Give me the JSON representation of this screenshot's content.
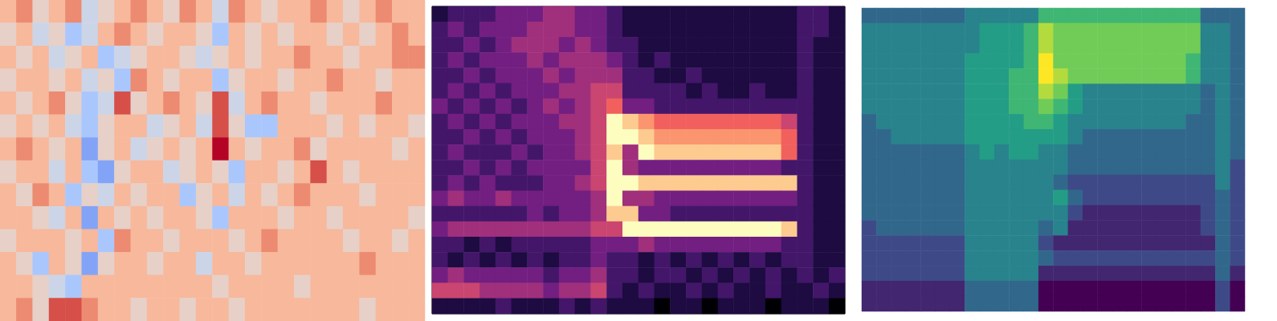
{
  "chart_data": [
    {
      "type": "heatmap",
      "color": "coolwarm",
      "tick_labels": false,
      "zlim": [
        0,
        9
      ],
      "cells": [
        [
          6,
          7,
          5,
          6,
          7,
          4,
          5,
          6,
          7,
          6,
          5,
          7,
          6,
          4,
          7,
          6,
          5,
          6,
          6,
          7,
          6,
          5,
          6,
          7,
          6,
          6
        ],
        [
          5,
          6,
          4,
          5,
          3,
          4,
          6,
          7,
          6,
          5,
          6,
          6,
          5,
          3,
          6,
          5,
          6,
          5,
          6,
          6,
          5,
          6,
          5,
          6,
          7,
          6
        ],
        [
          6,
          5,
          6,
          4,
          5,
          6,
          3,
          4,
          5,
          6,
          6,
          5,
          4,
          5,
          6,
          5,
          6,
          6,
          7,
          6,
          6,
          5,
          6,
          6,
          7,
          7
        ],
        [
          5,
          6,
          6,
          5,
          6,
          4,
          5,
          3,
          7,
          6,
          5,
          6,
          6,
          3,
          5,
          6,
          6,
          5,
          6,
          6,
          7,
          6,
          6,
          5,
          6,
          6
        ],
        [
          6,
          5,
          6,
          7,
          5,
          3,
          4,
          8,
          5,
          6,
          7,
          6,
          5,
          8,
          4,
          6,
          7,
          6,
          6,
          5,
          6,
          6,
          6,
          7,
          6,
          6
        ],
        [
          5,
          6,
          5,
          6,
          4,
          3,
          5,
          6,
          6,
          4,
          5,
          6,
          4,
          8,
          5,
          3,
          3,
          6,
          6,
          6,
          5,
          6,
          5,
          6,
          6,
          5
        ],
        [
          6,
          7,
          6,
          5,
          6,
          2,
          5,
          6,
          4,
          5,
          6,
          5,
          6,
          9,
          6,
          5,
          6,
          6,
          7,
          5,
          6,
          6,
          6,
          6,
          5,
          6
        ],
        [
          5,
          6,
          6,
          4,
          6,
          3,
          2,
          5,
          6,
          6,
          4,
          5,
          6,
          5,
          3,
          6,
          6,
          5,
          6,
          8,
          6,
          5,
          6,
          6,
          6,
          6
        ],
        [
          6,
          5,
          7,
          6,
          3,
          5,
          4,
          6,
          5,
          6,
          6,
          3,
          5,
          6,
          4,
          6,
          5,
          6,
          7,
          6,
          6,
          6,
          5,
          6,
          6,
          6
        ],
        [
          6,
          6,
          5,
          4,
          6,
          2,
          6,
          5,
          6,
          5,
          6,
          6,
          5,
          3,
          6,
          6,
          6,
          5,
          6,
          6,
          5,
          6,
          6,
          6,
          6,
          5
        ],
        [
          5,
          6,
          6,
          6,
          5,
          6,
          3,
          7,
          6,
          6,
          5,
          6,
          6,
          6,
          5,
          6,
          7,
          6,
          6,
          6,
          6,
          5,
          6,
          6,
          5,
          6
        ],
        [
          6,
          5,
          3,
          6,
          5,
          2,
          5,
          6,
          6,
          5,
          6,
          6,
          4,
          6,
          6,
          5,
          6,
          6,
          6,
          6,
          6,
          6,
          7,
          6,
          6,
          6
        ],
        [
          6,
          6,
          5,
          4,
          3,
          6,
          6,
          6,
          6,
          6,
          6,
          6,
          6,
          5,
          6,
          6,
          6,
          6,
          5,
          6,
          6,
          6,
          6,
          6,
          6,
          6
        ],
        [
          6,
          7,
          5,
          8,
          8,
          7,
          6,
          6,
          5,
          6,
          6,
          5,
          6,
          6,
          5,
          6,
          6,
          6,
          6,
          6,
          6,
          6,
          5,
          6,
          6,
          6
        ]
      ]
    },
    {
      "type": "heatmap",
      "color": "magma",
      "tick_labels": false,
      "zlim": [
        0,
        9
      ],
      "cells": [
        [
          1,
          2,
          2,
          2,
          3,
          3,
          3,
          4,
          4,
          3,
          3,
          2,
          1,
          1,
          1,
          1,
          1,
          1,
          1,
          1,
          1,
          1,
          1,
          2,
          2,
          1
        ],
        [
          2,
          3,
          2,
          3,
          3,
          3,
          4,
          4,
          4,
          3,
          3,
          2,
          1,
          1,
          1,
          1,
          1,
          1,
          1,
          1,
          1,
          1,
          1,
          2,
          2,
          1
        ],
        [
          2,
          2,
          3,
          2,
          3,
          4,
          4,
          4,
          3,
          4,
          3,
          2,
          2,
          1,
          1,
          1,
          1,
          1,
          1,
          1,
          1,
          1,
          1,
          2,
          1,
          1
        ],
        [
          2,
          3,
          2,
          3,
          3,
          3,
          4,
          3,
          4,
          4,
          4,
          3,
          2,
          1,
          2,
          1,
          1,
          1,
          1,
          1,
          1,
          1,
          1,
          2,
          1,
          1
        ],
        [
          2,
          2,
          3,
          2,
          3,
          3,
          3,
          4,
          3,
          4,
          4,
          4,
          2,
          2,
          1,
          1,
          2,
          1,
          1,
          1,
          1,
          1,
          1,
          2,
          1,
          1
        ],
        [
          2,
          3,
          2,
          3,
          2,
          3,
          3,
          3,
          4,
          4,
          5,
          5,
          2,
          2,
          2,
          2,
          1,
          2,
          1,
          1,
          2,
          1,
          1,
          2,
          1,
          1
        ],
        [
          3,
          2,
          3,
          2,
          3,
          2,
          3,
          4,
          3,
          4,
          5,
          6,
          3,
          3,
          2,
          2,
          2,
          2,
          2,
          2,
          2,
          2,
          2,
          2,
          1,
          1
        ],
        [
          2,
          3,
          2,
          3,
          2,
          3,
          3,
          3,
          4,
          4,
          5,
          9,
          8,
          7,
          6,
          6,
          6,
          6,
          6,
          6,
          6,
          6,
          5,
          2,
          1,
          1
        ],
        [
          2,
          2,
          3,
          2,
          3,
          2,
          3,
          3,
          3,
          4,
          5,
          9,
          9,
          8,
          7,
          7,
          7,
          7,
          7,
          7,
          7,
          7,
          6,
          2,
          1,
          1
        ],
        [
          2,
          3,
          2,
          2,
          2,
          3,
          2,
          3,
          3,
          4,
          5,
          8,
          4,
          9,
          8,
          8,
          8,
          8,
          8,
          8,
          8,
          8,
          6,
          2,
          1,
          1
        ],
        [
          2,
          2,
          3,
          2,
          3,
          2,
          3,
          3,
          3,
          3,
          5,
          9,
          4,
          3,
          3,
          3,
          3,
          3,
          3,
          3,
          3,
          3,
          2,
          2,
          1,
          1
        ],
        [
          2,
          3,
          2,
          3,
          2,
          2,
          2,
          3,
          3,
          4,
          5,
          9,
          9,
          8,
          8,
          8,
          8,
          8,
          8,
          8,
          8,
          8,
          8,
          2,
          1,
          1
        ],
        [
          3,
          4,
          3,
          3,
          4,
          3,
          3,
          3,
          3,
          3,
          4,
          9,
          4,
          4,
          3,
          3,
          3,
          3,
          3,
          3,
          3,
          3,
          3,
          2,
          1,
          1
        ],
        [
          2,
          2,
          2,
          2,
          2,
          2,
          3,
          2,
          3,
          3,
          4,
          8,
          8,
          3,
          3,
          2,
          2,
          2,
          2,
          2,
          2,
          2,
          2,
          2,
          1,
          1
        ],
        [
          3,
          4,
          4,
          4,
          4,
          4,
          4,
          4,
          4,
          4,
          5,
          5,
          9,
          9,
          9,
          9,
          9,
          9,
          9,
          9,
          9,
          9,
          8,
          2,
          1,
          1
        ],
        [
          2,
          2,
          1,
          2,
          1,
          2,
          2,
          2,
          2,
          2,
          3,
          3,
          3,
          4,
          3,
          3,
          3,
          3,
          3,
          3,
          3,
          3,
          2,
          2,
          1,
          1
        ],
        [
          2,
          1,
          2,
          1,
          2,
          1,
          2,
          1,
          2,
          2,
          3,
          2,
          2,
          1,
          2,
          1,
          2,
          1,
          2,
          1,
          2,
          1,
          2,
          2,
          1,
          1
        ],
        [
          3,
          4,
          3,
          3,
          3,
          3,
          3,
          2,
          3,
          3,
          4,
          2,
          2,
          1,
          2,
          2,
          1,
          2,
          1,
          2,
          1,
          2,
          1,
          2,
          1,
          2
        ],
        [
          5,
          5,
          5,
          4,
          4,
          4,
          4,
          3,
          4,
          4,
          5,
          2,
          1,
          2,
          1,
          1,
          2,
          1,
          2,
          1,
          1,
          2,
          1,
          1,
          2,
          1
        ],
        [
          1,
          1,
          1,
          1,
          2,
          1,
          1,
          1,
          2,
          1,
          2,
          1,
          1,
          1,
          0,
          1,
          1,
          0,
          1,
          1,
          1,
          0,
          1,
          1,
          1,
          0
        ]
      ]
    },
    {
      "type": "heatmap",
      "color": "viridis",
      "tick_labels": false,
      "zlim": [
        0,
        9
      ],
      "cells": [
        [
          3,
          3,
          3,
          3,
          3,
          3,
          3,
          4,
          4,
          4,
          4,
          4,
          6,
          6,
          6,
          6,
          6,
          6,
          6,
          6,
          6,
          6,
          6,
          3,
          3,
          3
        ],
        [
          4,
          4,
          4,
          4,
          4,
          4,
          4,
          4,
          5,
          5,
          5,
          6,
          8,
          7,
          7,
          7,
          7,
          7,
          7,
          7,
          7,
          7,
          7,
          4,
          4,
          3
        ],
        [
          4,
          4,
          4,
          4,
          4,
          4,
          4,
          4,
          5,
          5,
          5,
          6,
          8,
          7,
          7,
          7,
          7,
          7,
          7,
          7,
          7,
          7,
          7,
          4,
          4,
          3
        ],
        [
          4,
          4,
          4,
          4,
          4,
          4,
          4,
          5,
          5,
          5,
          5,
          6,
          9,
          7,
          7,
          7,
          7,
          7,
          7,
          7,
          7,
          7,
          6,
          4,
          4,
          3
        ],
        [
          4,
          4,
          4,
          4,
          4,
          4,
          4,
          5,
          5,
          5,
          6,
          6,
          9,
          8,
          7,
          7,
          7,
          7,
          7,
          7,
          7,
          7,
          6,
          4,
          4,
          3
        ],
        [
          4,
          4,
          4,
          4,
          4,
          4,
          4,
          5,
          5,
          5,
          6,
          6,
          8,
          7,
          5,
          4,
          4,
          4,
          4,
          4,
          4,
          4,
          4,
          3,
          4,
          3
        ],
        [
          4,
          4,
          4,
          4,
          4,
          4,
          4,
          5,
          5,
          5,
          6,
          6,
          7,
          6,
          5,
          4,
          4,
          4,
          4,
          4,
          4,
          4,
          4,
          3,
          4,
          3
        ],
        [
          3,
          4,
          4,
          4,
          4,
          4,
          4,
          5,
          5,
          5,
          5,
          6,
          6,
          5,
          4,
          4,
          4,
          4,
          4,
          4,
          4,
          4,
          3,
          3,
          4,
          3
        ],
        [
          3,
          3,
          4,
          4,
          4,
          4,
          4,
          5,
          5,
          5,
          5,
          5,
          5,
          5,
          4,
          3,
          3,
          3,
          3,
          3,
          3,
          3,
          3,
          3,
          4,
          3
        ],
        [
          3,
          3,
          3,
          3,
          3,
          3,
          3,
          4,
          5,
          4,
          5,
          5,
          4,
          4,
          3,
          3,
          3,
          3,
          3,
          3,
          3,
          3,
          3,
          3,
          4,
          3
        ],
        [
          3,
          3,
          3,
          3,
          3,
          3,
          3,
          4,
          4,
          4,
          4,
          4,
          4,
          4,
          3,
          3,
          3,
          3,
          3,
          3,
          3,
          3,
          3,
          3,
          4,
          2
        ],
        [
          3,
          3,
          3,
          3,
          3,
          3,
          3,
          4,
          4,
          4,
          4,
          4,
          4,
          3,
          2,
          2,
          2,
          2,
          2,
          2,
          2,
          2,
          2,
          2,
          4,
          2
        ],
        [
          3,
          3,
          3,
          3,
          3,
          3,
          3,
          4,
          4,
          4,
          4,
          4,
          4,
          5,
          3,
          2,
          2,
          2,
          2,
          2,
          2,
          2,
          2,
          2,
          3,
          2
        ],
        [
          3,
          3,
          3,
          3,
          3,
          3,
          3,
          4,
          4,
          4,
          4,
          4,
          4,
          4,
          2,
          1,
          1,
          1,
          1,
          1,
          1,
          1,
          1,
          2,
          3,
          2
        ],
        [
          2,
          3,
          3,
          3,
          3,
          3,
          3,
          4,
          4,
          4,
          4,
          4,
          3,
          4,
          1,
          1,
          1,
          1,
          1,
          1,
          1,
          1,
          1,
          2,
          3,
          2
        ],
        [
          2,
          2,
          2,
          2,
          2,
          2,
          2,
          4,
          4,
          4,
          4,
          4,
          2,
          1,
          1,
          1,
          1,
          1,
          1,
          1,
          1,
          1,
          1,
          1,
          3,
          2
        ],
        [
          2,
          2,
          2,
          2,
          2,
          2,
          2,
          4,
          4,
          4,
          4,
          4,
          3,
          2,
          2,
          2,
          2,
          2,
          2,
          2,
          2,
          2,
          2,
          2,
          3,
          2
        ],
        [
          2,
          2,
          2,
          2,
          2,
          2,
          2,
          4,
          4,
          4,
          4,
          4,
          1,
          1,
          1,
          1,
          1,
          1,
          1,
          1,
          1,
          1,
          1,
          1,
          3,
          1
        ],
        [
          1,
          1,
          1,
          1,
          1,
          1,
          1,
          3,
          3,
          3,
          3,
          3,
          0,
          0,
          0,
          0,
          0,
          0,
          0,
          0,
          0,
          0,
          0,
          0,
          2,
          0
        ],
        [
          1,
          1,
          1,
          1,
          1,
          1,
          1,
          3,
          3,
          3,
          3,
          3,
          0,
          0,
          0,
          0,
          0,
          0,
          0,
          0,
          0,
          0,
          0,
          0,
          2,
          0
        ]
      ]
    }
  ]
}
